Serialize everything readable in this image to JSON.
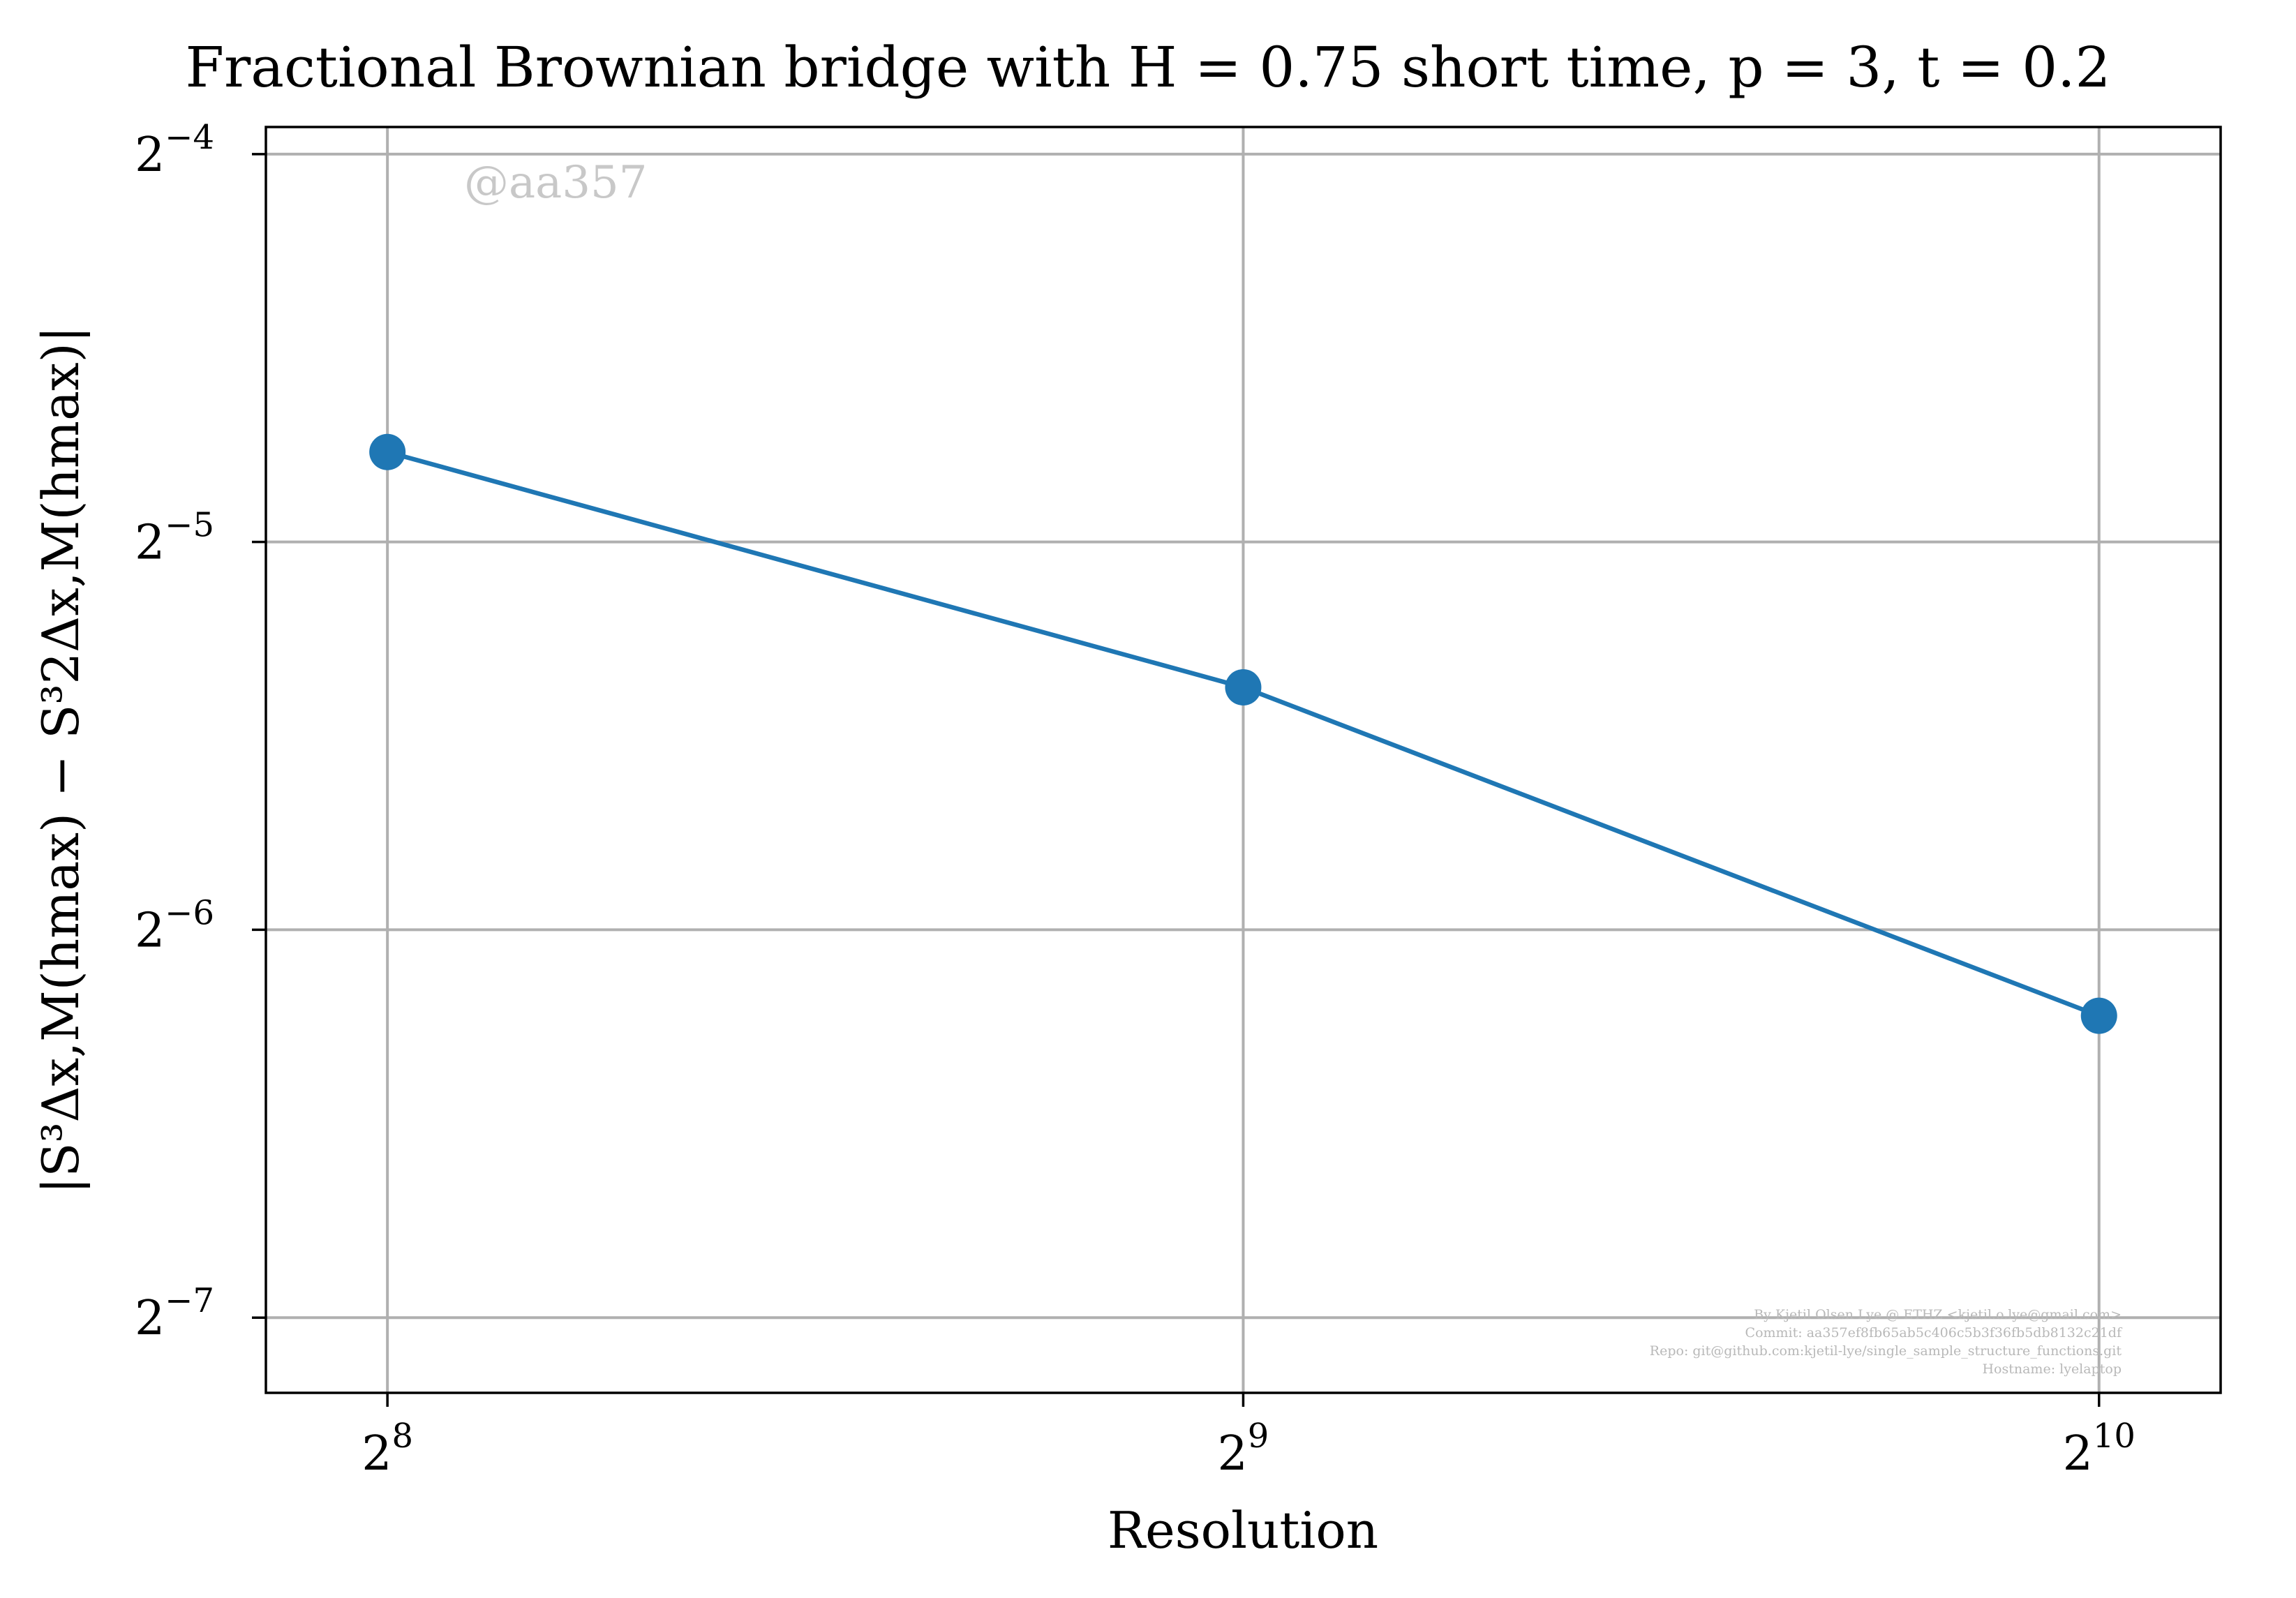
{
  "chart_data": {
    "type": "line",
    "title": "Fractional Brownian bridge with H = 0.75 short time, p = 3, t = 0.2",
    "xlabel": "Resolution",
    "ylabel": "|S³Δx,M(hmax) − S³2Δx,M(hmax)|",
    "x_scale": "log2",
    "y_scale": "log2",
    "x": [
      256,
      512,
      1024
    ],
    "series": [
      {
        "values": [
          0.0367,
          0.0241,
          0.0134
        ]
      }
    ],
    "xlim": [
      232,
      1130
    ],
    "ylim": [
      0.00683,
      0.0656
    ],
    "x_ticks": [
      {
        "value": 256,
        "base": "2",
        "exp": "8"
      },
      {
        "value": 512,
        "base": "2",
        "exp": "9"
      },
      {
        "value": 1024,
        "base": "2",
        "exp": "10"
      }
    ],
    "y_ticks": [
      {
        "value": 0.0625,
        "base": "2",
        "exp": "−4"
      },
      {
        "value": 0.03125,
        "base": "2",
        "exp": "−5"
      },
      {
        "value": 0.015625,
        "base": "2",
        "exp": "−6"
      },
      {
        "value": 0.0078125,
        "base": "2",
        "exp": "−7"
      }
    ],
    "grid": true,
    "colors": {
      "series": "#1f77b4",
      "grid": "#b0b0b0"
    },
    "watermark": "@aa357",
    "credits": [
      "By Kjetil Olsen Lye @ ETHZ <kjetil.o.lye@gmail.com>",
      "Commit: aa357ef8fb65ab5c406c5b3f36fb5db8132c21df",
      "Repo: git@github.com:kjetil-lye/single_sample_structure_functions.git",
      "Hostname: lyelaptop"
    ]
  }
}
